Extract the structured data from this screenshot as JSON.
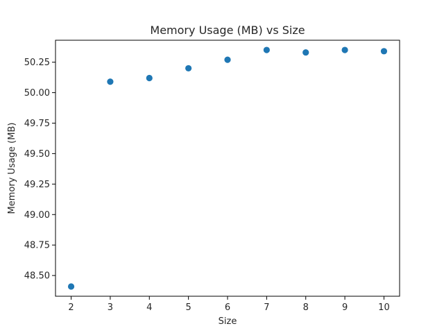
{
  "chart_data": {
    "type": "scatter",
    "title": "Memory Usage (MB) vs Size",
    "xlabel": "Size",
    "ylabel": "Memory Usage (MB)",
    "x": [
      2,
      3,
      4,
      5,
      6,
      7,
      8,
      9,
      10
    ],
    "y": [
      48.41,
      50.09,
      50.12,
      50.2,
      50.27,
      50.35,
      50.33,
      50.35,
      50.34
    ],
    "xlim": [
      1.6,
      10.4
    ],
    "ylim": [
      48.33,
      50.43
    ],
    "x_ticks": [
      2,
      3,
      4,
      5,
      6,
      7,
      8,
      9,
      10
    ],
    "x_tick_labels": [
      "2",
      "3",
      "4",
      "5",
      "6",
      "7",
      "8",
      "9",
      "10"
    ],
    "y_ticks": [
      48.5,
      48.75,
      49.0,
      49.25,
      49.5,
      49.75,
      50.0,
      50.25
    ],
    "y_tick_labels": [
      "48.50",
      "48.75",
      "49.00",
      "49.25",
      "49.50",
      "49.75",
      "50.00",
      "50.25"
    ],
    "grid": false,
    "point_color": "#1f77b4"
  }
}
